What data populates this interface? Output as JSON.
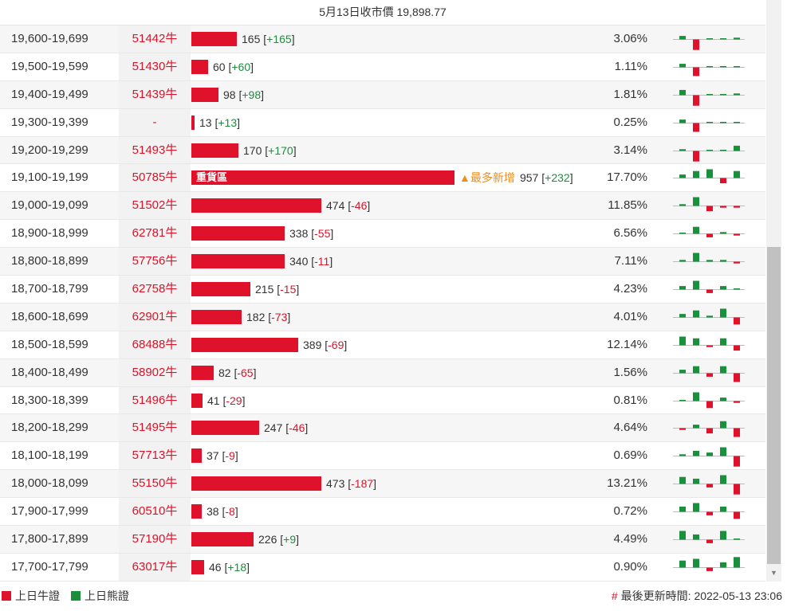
{
  "header": {
    "title": "5月13日收市價 19,898.77"
  },
  "colors": {
    "red": "#e0112b",
    "green": "#1a8f3c",
    "orange": "#f08c1a"
  },
  "legend": {
    "bull": "上日牛證",
    "bear": "上日熊證"
  },
  "footer": {
    "hash": "#",
    "updated": "最後更新時間: 2022-05-13 23:06"
  },
  "bar_max": 957,
  "rows": [
    {
      "range": "19,600-19,699",
      "code": "51442牛",
      "count": "165",
      "change": "+165",
      "pct": "3.06%",
      "value": 165,
      "spark": [
        2,
        -6,
        0,
        0,
        1
      ]
    },
    {
      "range": "19,500-19,599",
      "code": "51430牛",
      "count": "60",
      "change": "+60",
      "pct": "1.11%",
      "value": 60,
      "spark": [
        2,
        -5,
        0,
        0,
        0
      ]
    },
    {
      "range": "19,400-19,499",
      "code": "51439牛",
      "count": "98",
      "change": "+98",
      "pct": "1.81%",
      "value": 98,
      "spark": [
        3,
        -6,
        0,
        0,
        1
      ]
    },
    {
      "range": "19,300-19,399",
      "code": "-",
      "count": "13",
      "change": "+13",
      "pct": "0.25%",
      "value": 13,
      "spark": [
        2,
        -5,
        0,
        0,
        0
      ]
    },
    {
      "range": "19,200-19,299",
      "code": "51493牛",
      "count": "170",
      "change": "+170",
      "pct": "3.14%",
      "value": 170,
      "spark": [
        1,
        -6,
        0,
        0,
        3
      ]
    },
    {
      "range": "19,100-19,199",
      "code": "50785牛",
      "count": "957",
      "change": "+232",
      "pct": "17.70%",
      "value": 957,
      "label": "重貨區",
      "tag": "▲最多新增",
      "spark": [
        2,
        4,
        5,
        -3,
        4
      ]
    },
    {
      "range": "19,000-19,099",
      "code": "51502牛",
      "count": "474",
      "change": "-46",
      "pct": "11.85%",
      "value": 474,
      "spark": [
        1,
        5,
        -3,
        -1,
        -1
      ]
    },
    {
      "range": "18,900-18,999",
      "code": "62781牛",
      "count": "338",
      "change": "-55",
      "pct": "6.56%",
      "value": 338,
      "spark": [
        0,
        4,
        -2,
        1,
        -1
      ]
    },
    {
      "range": "18,800-18,899",
      "code": "57756牛",
      "count": "340",
      "change": "-11",
      "pct": "7.11%",
      "value": 340,
      "spark": [
        1,
        5,
        1,
        1,
        -1
      ]
    },
    {
      "range": "18,700-18,799",
      "code": "62758牛",
      "count": "215",
      "change": "-15",
      "pct": "4.23%",
      "value": 215,
      "spark": [
        2,
        5,
        -2,
        2,
        0
      ]
    },
    {
      "range": "18,600-18,699",
      "code": "62901牛",
      "count": "182",
      "change": "-73",
      "pct": "4.01%",
      "value": 182,
      "spark": [
        2,
        4,
        1,
        5,
        -4
      ]
    },
    {
      "range": "18,500-18,599",
      "code": "68488牛",
      "count": "389",
      "change": "-69",
      "pct": "12.14%",
      "value": 389,
      "spark": [
        5,
        4,
        -1,
        4,
        -3
      ]
    },
    {
      "range": "18,400-18,499",
      "code": "58902牛",
      "count": "82",
      "change": "-65",
      "pct": "1.56%",
      "value": 82,
      "spark": [
        2,
        4,
        -2,
        4,
        -5
      ]
    },
    {
      "range": "18,300-18,399",
      "code": "51496牛",
      "count": "41",
      "change": "-29",
      "pct": "0.81%",
      "value": 41,
      "spark": [
        0,
        5,
        -4,
        2,
        -1
      ]
    },
    {
      "range": "18,200-18,299",
      "code": "51495牛",
      "count": "247",
      "change": "-46",
      "pct": "4.64%",
      "value": 247,
      "spark": [
        -1,
        2,
        -3,
        4,
        -5
      ]
    },
    {
      "range": "18,100-18,199",
      "code": "57713牛",
      "count": "37",
      "change": "-9",
      "pct": "0.69%",
      "value": 37,
      "spark": [
        1,
        3,
        2,
        5,
        -6
      ]
    },
    {
      "range": "18,000-18,099",
      "code": "55150牛",
      "count": "473",
      "change": "-187",
      "pct": "13.21%",
      "value": 473,
      "spark": [
        4,
        3,
        -2,
        5,
        -6
      ]
    },
    {
      "range": "17,900-17,999",
      "code": "60510牛",
      "count": "38",
      "change": "-8",
      "pct": "0.72%",
      "value": 38,
      "spark": [
        3,
        5,
        -2,
        3,
        -4
      ]
    },
    {
      "range": "17,800-17,899",
      "code": "57190牛",
      "count": "226",
      "change": "+9",
      "pct": "4.49%",
      "value": 226,
      "spark": [
        5,
        3,
        -2,
        5,
        0
      ]
    },
    {
      "range": "17,700-17,799",
      "code": "63017牛",
      "count": "46",
      "change": "+18",
      "pct": "0.90%",
      "value": 46,
      "spark": [
        4,
        5,
        -2,
        3,
        6
      ]
    }
  ]
}
